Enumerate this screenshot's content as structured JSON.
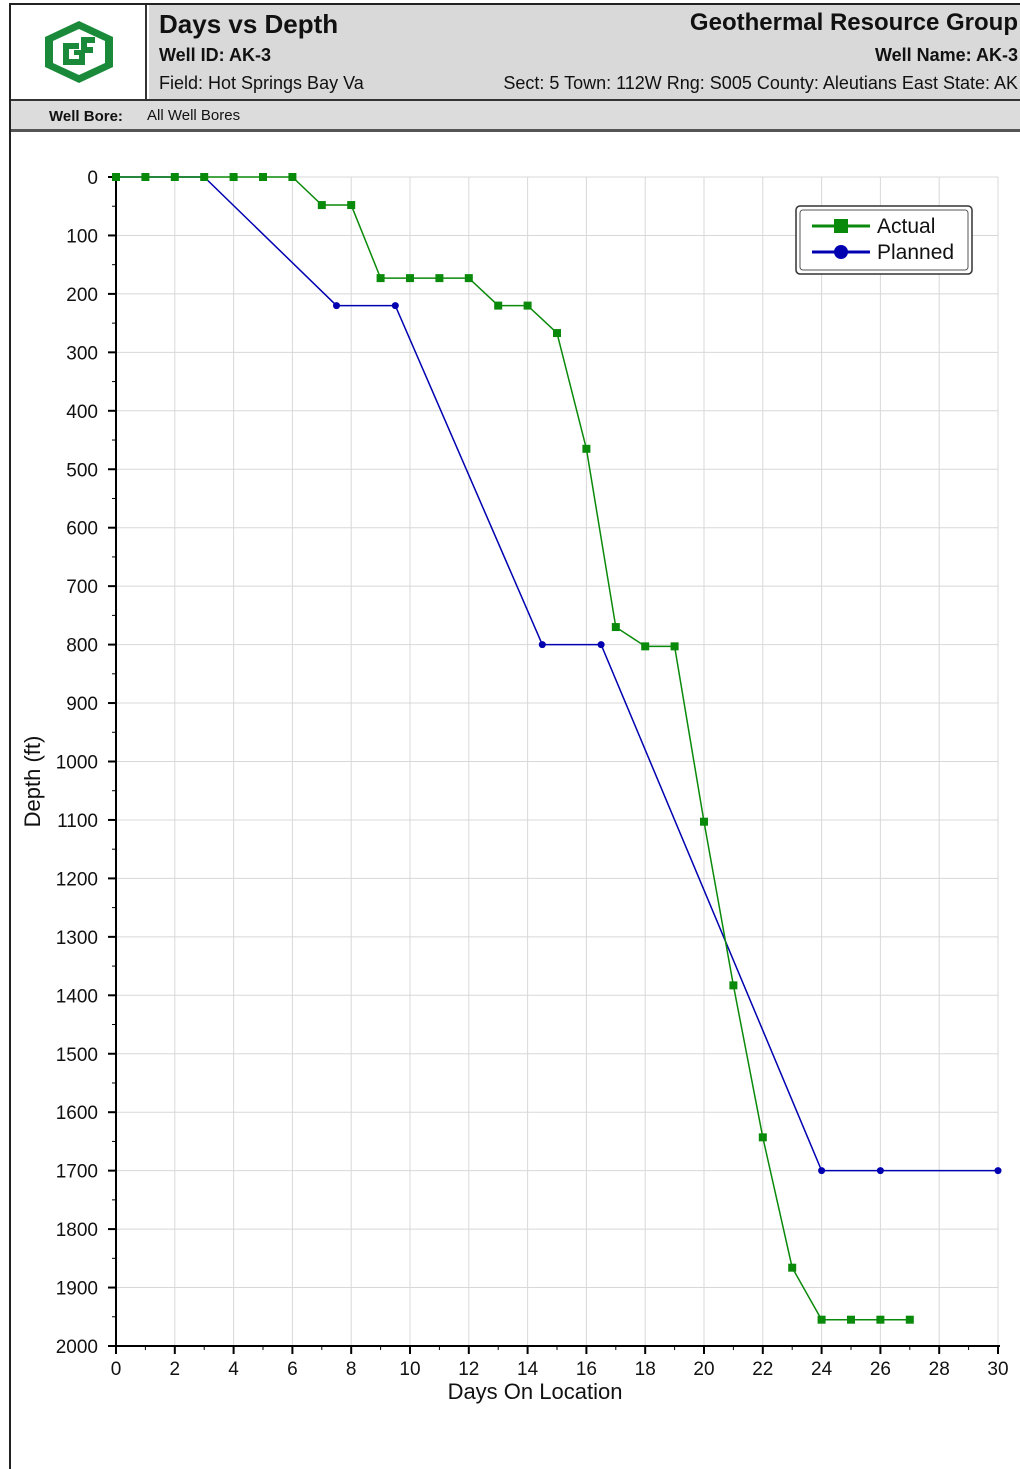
{
  "header": {
    "title": "Days vs Depth",
    "company": "Geothermal Resource Group",
    "well_id_label": "Well ID:",
    "well_id": "AK-3",
    "well_name_label": "Well Name:",
    "well_name": "AK-3",
    "field": "Field: Hot Springs Bay Va",
    "location": "Sect: 5  Town: 112W  Rng: S005  County: Aleutians East  State: AK",
    "logo_icon": "grg-logo-icon",
    "logo_color": "#1a8a3a"
  },
  "well_bore": {
    "label": "Well Bore:",
    "value": "All Well Bores"
  },
  "chart_data": {
    "type": "line",
    "title": "",
    "xlabel": "Days On Location",
    "ylabel": "Depth (ft)",
    "xlim": [
      0,
      30
    ],
    "ylim": [
      0,
      2000
    ],
    "y_inverted": true,
    "x_ticks": [
      0,
      2,
      4,
      6,
      8,
      10,
      12,
      14,
      16,
      18,
      20,
      22,
      24,
      26,
      28,
      30
    ],
    "y_ticks": [
      0,
      100,
      200,
      300,
      400,
      500,
      600,
      700,
      800,
      900,
      1000,
      1100,
      1200,
      1300,
      1400,
      1500,
      1600,
      1700,
      1800,
      1900,
      2000
    ],
    "grid": true,
    "legend_position": "top-right",
    "series": [
      {
        "name": "Actual",
        "color": "#0a8a0a",
        "marker": "square",
        "x": [
          0,
          1,
          2,
          3,
          4,
          5,
          6,
          7,
          8,
          9,
          10,
          11,
          12,
          13,
          14,
          15,
          16,
          17,
          18,
          19,
          20,
          21,
          22,
          23,
          24,
          25,
          26,
          27
        ],
        "y": [
          0,
          0,
          0,
          0,
          0,
          0,
          0,
          48,
          48,
          173,
          173,
          173,
          173,
          220,
          220,
          267,
          465,
          770,
          803,
          803,
          1103,
          1383,
          1643,
          1866,
          1955,
          1955,
          1955,
          1955
        ]
      },
      {
        "name": "Planned",
        "color": "#0000b0",
        "marker": "circle",
        "x": [
          0,
          3,
          7.5,
          9.5,
          14.5,
          16.5,
          24,
          26,
          30
        ],
        "y": [
          0,
          0,
          220,
          220,
          800,
          800,
          1700,
          1700,
          1700
        ]
      }
    ]
  }
}
